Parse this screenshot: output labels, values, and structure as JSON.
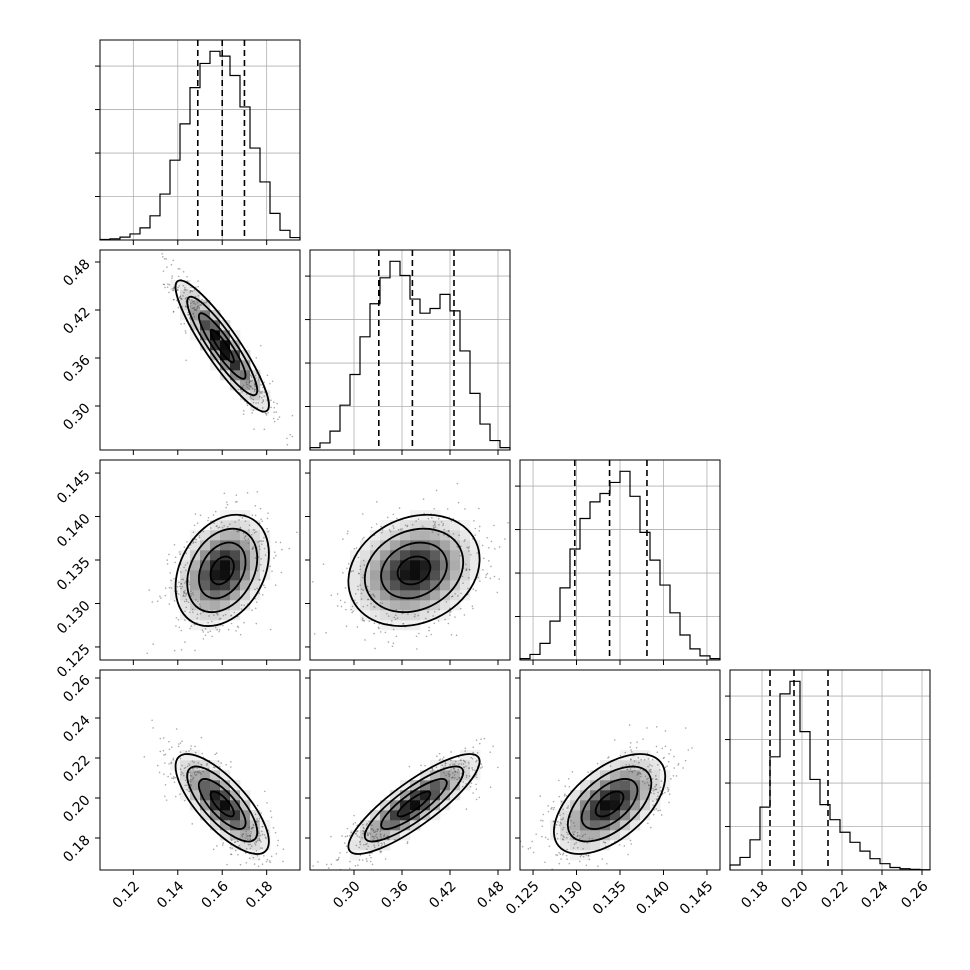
{
  "chart_data": {
    "type": "corner",
    "parameters": [
      {
        "range": [
          0.105,
          0.195
        ],
        "ticks": [
          0.12,
          0.14,
          0.16,
          0.18
        ],
        "tick_labels": [
          "0.12",
          "0.14",
          "0.16",
          "0.18"
        ],
        "quantiles": [
          0.149,
          0.16,
          0.17
        ],
        "mean": 0.16,
        "sd": 0.0105
      },
      {
        "range": [
          0.245,
          0.495
        ],
        "ticks": [
          0.3,
          0.36,
          0.42,
          0.48
        ],
        "tick_labels": [
          "0.30",
          "0.36",
          "0.42",
          "0.48"
        ],
        "quantiles": [
          0.331,
          0.373,
          0.425
        ],
        "mean": 0.375,
        "sd": 0.041
      },
      {
        "range": [
          0.1235,
          0.1465
        ],
        "ticks": [
          0.125,
          0.13,
          0.135,
          0.14,
          0.145
        ],
        "tick_labels": [
          "0.125",
          "0.130",
          "0.135",
          "0.140",
          "0.145"
        ],
        "quantiles": [
          0.1298,
          0.1338,
          0.1381
        ],
        "mean": 0.1338,
        "sd": 0.0032
      },
      {
        "range": [
          0.164,
          0.264
        ],
        "ticks": [
          0.18,
          0.2,
          0.22,
          0.24,
          0.26
        ],
        "tick_labels": [
          "0.18",
          "0.20",
          "0.22",
          "0.24",
          "0.26"
        ],
        "quantiles": [
          0.184,
          0.196,
          0.213
        ],
        "mean": 0.197,
        "sd": 0.0125
      }
    ],
    "histograms": [
      {
        "param": 0,
        "bin_edges": [
          0.105,
          0.1095,
          0.114,
          0.1185,
          0.123,
          0.1275,
          0.132,
          0.1365,
          0.141,
          0.1455,
          0.15,
          0.1545,
          0.159,
          0.1635,
          0.168,
          0.1725,
          0.177,
          0.1815,
          0.186,
          0.1905,
          0.195
        ],
        "counts": [
          0.2,
          0.5,
          1.2,
          2.5,
          5,
          10,
          19,
          33,
          48,
          63,
          73,
          78,
          76,
          68,
          55,
          38,
          24,
          11,
          4,
          1
        ]
      },
      {
        "param": 1,
        "bin_edges": [
          0.245,
          0.2575,
          0.27,
          0.2825,
          0.295,
          0.3075,
          0.32,
          0.3325,
          0.345,
          0.3575,
          0.37,
          0.3825,
          0.395,
          0.4075,
          0.42,
          0.4325,
          0.445,
          0.4575,
          0.47,
          0.4825,
          0.495
        ],
        "counts": [
          1,
          3,
          8,
          19,
          32,
          48,
          62,
          73,
          80,
          74,
          64,
          58,
          60,
          66,
          59,
          42,
          24,
          11,
          4,
          1
        ]
      },
      {
        "param": 2,
        "bin_edges": [
          0.1235,
          0.12465,
          0.1258,
          0.12695,
          0.1281,
          0.12925,
          0.1304,
          0.13155,
          0.1327,
          0.13385,
          0.135,
          0.13615,
          0.1373,
          0.13845,
          0.1396,
          0.14075,
          0.1419,
          0.14305,
          0.1442,
          0.14535,
          0.1465
        ],
        "counts": [
          0.5,
          2,
          6,
          14,
          26,
          40,
          51,
          57,
          60,
          64,
          68,
          59,
          46,
          36,
          27,
          17,
          9,
          4,
          1.5,
          0.5
        ]
      },
      {
        "param": 3,
        "bin_edges": [
          0.164,
          0.169,
          0.174,
          0.179,
          0.184,
          0.189,
          0.194,
          0.199,
          0.204,
          0.209,
          0.214,
          0.219,
          0.224,
          0.229,
          0.234,
          0.239,
          0.244,
          0.249,
          0.254,
          0.259,
          0.264
        ],
        "counts": [
          4,
          10,
          24,
          50,
          90,
          140,
          150,
          110,
          72,
          52,
          40,
          30,
          22,
          15,
          9,
          5,
          2,
          1,
          0.5,
          0.2
        ]
      }
    ],
    "pairs": [
      {
        "x": 0,
        "y": 1,
        "rho": -0.9
      },
      {
        "x": 0,
        "y": 2,
        "rho": 0.3
      },
      {
        "x": 1,
        "y": 2,
        "rho": 0.2
      },
      {
        "x": 0,
        "y": 3,
        "rho": -0.75
      },
      {
        "x": 1,
        "y": 3,
        "rho": 0.85
      },
      {
        "x": 2,
        "y": 3,
        "rho": 0.55
      }
    ],
    "grid": true,
    "title": "",
    "xlabel": "",
    "ylabel": ""
  }
}
